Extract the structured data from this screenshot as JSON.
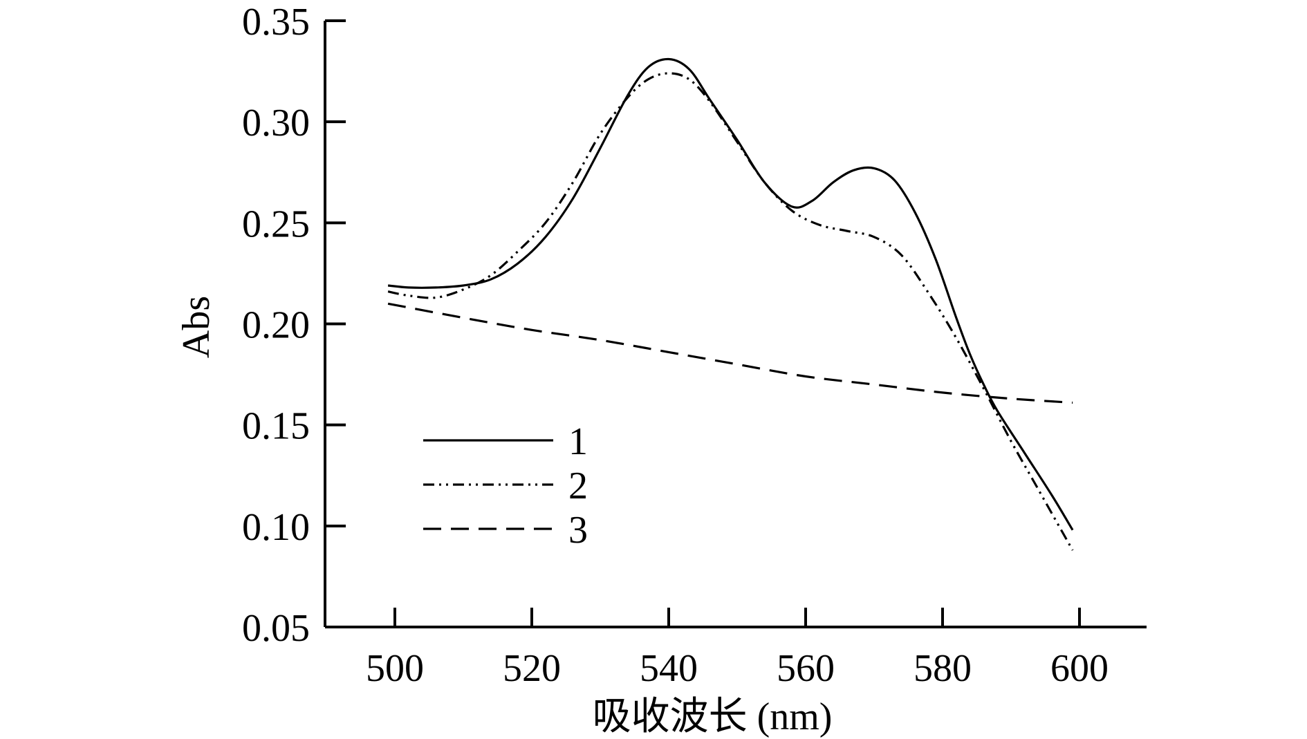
{
  "chart_data": {
    "type": "line",
    "title": "",
    "xlabel": "吸收波长 (nm)",
    "ylabel": "Abs",
    "xlim": [
      490,
      610
    ],
    "ylim": [
      0.05,
      0.35
    ],
    "xticks": [
      "500",
      "520",
      "540",
      "560",
      "580",
      "600"
    ],
    "xtick_values": [
      500,
      520,
      540,
      560,
      580,
      600
    ],
    "yticks": [
      "0.05",
      "0.10",
      "0.15",
      "0.20",
      "0.25",
      "0.30",
      "0.35"
    ],
    "ytick_values": [
      0.05,
      0.1,
      0.15,
      0.2,
      0.25,
      0.3,
      0.35
    ],
    "grid": false,
    "legend_position": "center-left",
    "series": [
      {
        "name": "1",
        "style": "solid",
        "x": [
          499,
          502,
          506,
          510,
          514,
          518,
          522,
          526,
          530,
          534,
          537,
          540,
          543,
          546,
          550,
          554,
          558,
          561,
          564,
          567,
          570,
          573,
          576,
          579,
          582,
          584,
          586,
          588,
          592,
          596,
          599
        ],
        "y": [
          0.219,
          0.218,
          0.218,
          0.219,
          0.222,
          0.23,
          0.243,
          0.262,
          0.287,
          0.313,
          0.327,
          0.331,
          0.326,
          0.311,
          0.291,
          0.27,
          0.258,
          0.261,
          0.27,
          0.276,
          0.277,
          0.271,
          0.255,
          0.232,
          0.203,
          0.185,
          0.17,
          0.157,
          0.136,
          0.115,
          0.098
        ]
      },
      {
        "name": "2",
        "style": "dash-dot-dot",
        "x": [
          499,
          502,
          506,
          510,
          514,
          518,
          522,
          526,
          530,
          534,
          537,
          540,
          543,
          546,
          550,
          554,
          558,
          562,
          566,
          570,
          574,
          578,
          582,
          586,
          590,
          594,
          599
        ],
        "y": [
          0.216,
          0.214,
          0.213,
          0.217,
          0.224,
          0.236,
          0.25,
          0.27,
          0.294,
          0.312,
          0.321,
          0.324,
          0.321,
          0.31,
          0.29,
          0.27,
          0.256,
          0.249,
          0.246,
          0.243,
          0.234,
          0.215,
          0.193,
          0.168,
          0.142,
          0.118,
          0.088
        ]
      },
      {
        "name": "3",
        "style": "dashed",
        "x": [
          499,
          510,
          520,
          530,
          540,
          550,
          560,
          570,
          580,
          590,
          599
        ],
        "y": [
          0.21,
          0.203,
          0.197,
          0.192,
          0.186,
          0.18,
          0.174,
          0.17,
          0.166,
          0.163,
          0.161
        ]
      }
    ]
  }
}
